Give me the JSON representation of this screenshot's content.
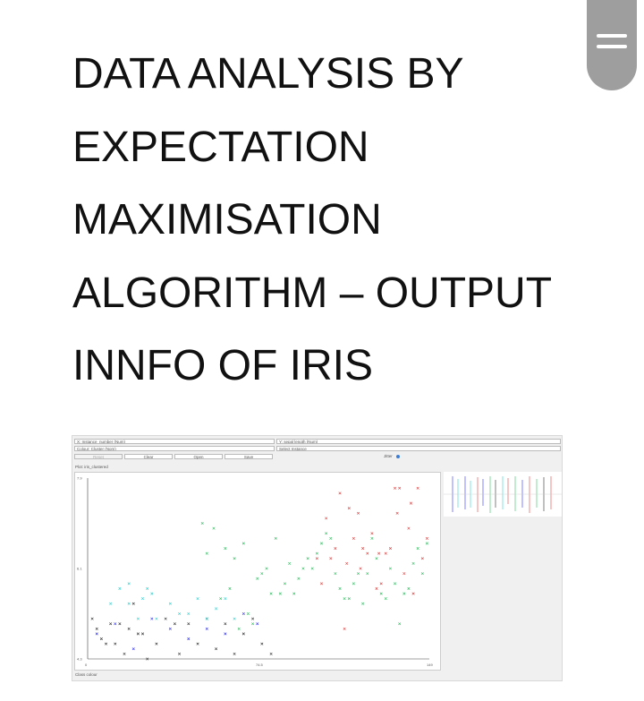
{
  "page": {
    "title_lines": [
      "DATA ANALYSIS BY",
      "EXPECTATION",
      "MAXIMISATION",
      "ALGORITHM – OUTPUT",
      "INNFO OF IRIS"
    ],
    "menu_icon": "hamburger-menu-icon"
  },
  "app": {
    "x_axis_select": "X: Instance_number (Num)",
    "y_axis_select": "Y: sepal length (Num)",
    "colour_select": "Colour: Cluster (Nom)",
    "instance_select": "Select Instance",
    "buttons": {
      "reset": "Reset",
      "clear": "Clear",
      "open": "Open",
      "save": "Save"
    },
    "jitter_label": "Jitter",
    "plot_label": "Plot: iris_clustered",
    "y_ticks": [
      "7.9",
      "6.1",
      "4.3"
    ],
    "x_ticks": [
      "0",
      "74.5",
      "149"
    ],
    "class_colour_label": "Class colour",
    "colors": {
      "cluster0": "#3030ff",
      "cluster1": "#e04040",
      "cluster2": "#30c060",
      "cluster3": "#30d0d0",
      "cluster4": "#303030"
    }
  },
  "chart_data": {
    "type": "scatter",
    "title": "",
    "xlabel": "",
    "ylabel": "",
    "xlim": [
      0,
      149
    ],
    "ylim": [
      4.3,
      7.9
    ],
    "grid": false,
    "series": [
      {
        "color": "#303030",
        "points": [
          [
            2,
            5.1
          ],
          [
            4,
            4.9
          ],
          [
            6,
            4.7
          ],
          [
            8,
            4.6
          ],
          [
            10,
            5.0
          ],
          [
            12,
            4.6
          ],
          [
            14,
            5.0
          ],
          [
            16,
            4.4
          ],
          [
            18,
            4.9
          ],
          [
            20,
            5.4
          ],
          [
            22,
            4.8
          ],
          [
            24,
            4.8
          ],
          [
            26,
            4.3
          ],
          [
            30,
            4.6
          ],
          [
            34,
            5.1
          ],
          [
            38,
            5.0
          ],
          [
            40,
            4.4
          ],
          [
            44,
            5.0
          ],
          [
            48,
            4.6
          ],
          [
            52,
            5.1
          ],
          [
            56,
            4.5
          ],
          [
            60,
            5.0
          ],
          [
            64,
            4.4
          ],
          [
            68,
            4.8
          ],
          [
            72,
            5.1
          ],
          [
            76,
            4.6
          ],
          [
            80,
            4.4
          ]
        ]
      },
      {
        "color": "#30d0d0",
        "points": [
          [
            10,
            5.4
          ],
          [
            14,
            5.7
          ],
          [
            18,
            5.4
          ],
          [
            22,
            5.1
          ],
          [
            26,
            5.7
          ],
          [
            30,
            5.1
          ],
          [
            36,
            5.4
          ],
          [
            40,
            5.2
          ],
          [
            44,
            5.2
          ],
          [
            48,
            5.5
          ],
          [
            52,
            5.1
          ],
          [
            56,
            5.3
          ],
          [
            60,
            5.5
          ],
          [
            64,
            5.1
          ],
          [
            18,
            5.8
          ],
          [
            24,
            5.5
          ],
          [
            28,
            5.6
          ]
        ]
      },
      {
        "color": "#3030ff",
        "points": [
          [
            4,
            4.8
          ],
          [
            12,
            5.0
          ],
          [
            20,
            4.5
          ],
          [
            28,
            5.1
          ],
          [
            36,
            4.9
          ],
          [
            44,
            4.7
          ],
          [
            52,
            4.9
          ],
          [
            60,
            4.8
          ],
          [
            68,
            5.2
          ],
          [
            74,
            5.0
          ]
        ]
      },
      {
        "color": "#30c060",
        "points": [
          [
            50,
            7.0
          ],
          [
            52,
            6.4
          ],
          [
            55,
            6.9
          ],
          [
            58,
            5.5
          ],
          [
            60,
            6.5
          ],
          [
            62,
            5.7
          ],
          [
            64,
            6.3
          ],
          [
            66,
            4.9
          ],
          [
            68,
            6.6
          ],
          [
            70,
            5.2
          ],
          [
            72,
            5.0
          ],
          [
            74,
            5.9
          ],
          [
            76,
            6.0
          ],
          [
            78,
            6.1
          ],
          [
            80,
            5.6
          ],
          [
            82,
            6.7
          ],
          [
            84,
            5.6
          ],
          [
            86,
            5.8
          ],
          [
            88,
            6.2
          ],
          [
            90,
            5.6
          ],
          [
            92,
            5.9
          ],
          [
            94,
            6.1
          ],
          [
            96,
            6.3
          ],
          [
            98,
            6.1
          ],
          [
            100,
            6.4
          ],
          [
            102,
            6.6
          ],
          [
            104,
            6.8
          ],
          [
            106,
            6.7
          ],
          [
            108,
            6.0
          ],
          [
            110,
            5.7
          ],
          [
            112,
            5.5
          ],
          [
            114,
            5.5
          ],
          [
            116,
            5.8
          ],
          [
            118,
            6.0
          ],
          [
            120,
            5.4
          ],
          [
            122,
            6.0
          ],
          [
            124,
            6.7
          ],
          [
            126,
            6.3
          ],
          [
            128,
            5.6
          ],
          [
            130,
            5.5
          ],
          [
            132,
            6.1
          ],
          [
            134,
            5.8
          ],
          [
            136,
            5.0
          ],
          [
            138,
            5.6
          ],
          [
            140,
            5.7
          ],
          [
            142,
            6.2
          ],
          [
            144,
            6.5
          ],
          [
            146,
            6.0
          ],
          [
            148,
            6.6
          ]
        ]
      },
      {
        "color": "#e04040",
        "points": [
          [
            100,
            6.3
          ],
          [
            102,
            5.8
          ],
          [
            104,
            7.1
          ],
          [
            106,
            6.3
          ],
          [
            108,
            6.5
          ],
          [
            110,
            7.6
          ],
          [
            112,
            4.9
          ],
          [
            114,
            7.3
          ],
          [
            116,
            6.7
          ],
          [
            118,
            7.2
          ],
          [
            120,
            6.5
          ],
          [
            122,
            6.4
          ],
          [
            124,
            6.8
          ],
          [
            126,
            5.7
          ],
          [
            128,
            5.8
          ],
          [
            130,
            6.4
          ],
          [
            132,
            6.5
          ],
          [
            134,
            7.7
          ],
          [
            136,
            7.7
          ],
          [
            138,
            6.0
          ],
          [
            140,
            6.9
          ],
          [
            142,
            5.6
          ],
          [
            144,
            7.7
          ],
          [
            146,
            6.3
          ],
          [
            148,
            6.7
          ],
          [
            113,
            6.2
          ],
          [
            119,
            6.1
          ],
          [
            127,
            6.4
          ],
          [
            135,
            7.2
          ],
          [
            141,
            7.4
          ]
        ]
      }
    ]
  }
}
